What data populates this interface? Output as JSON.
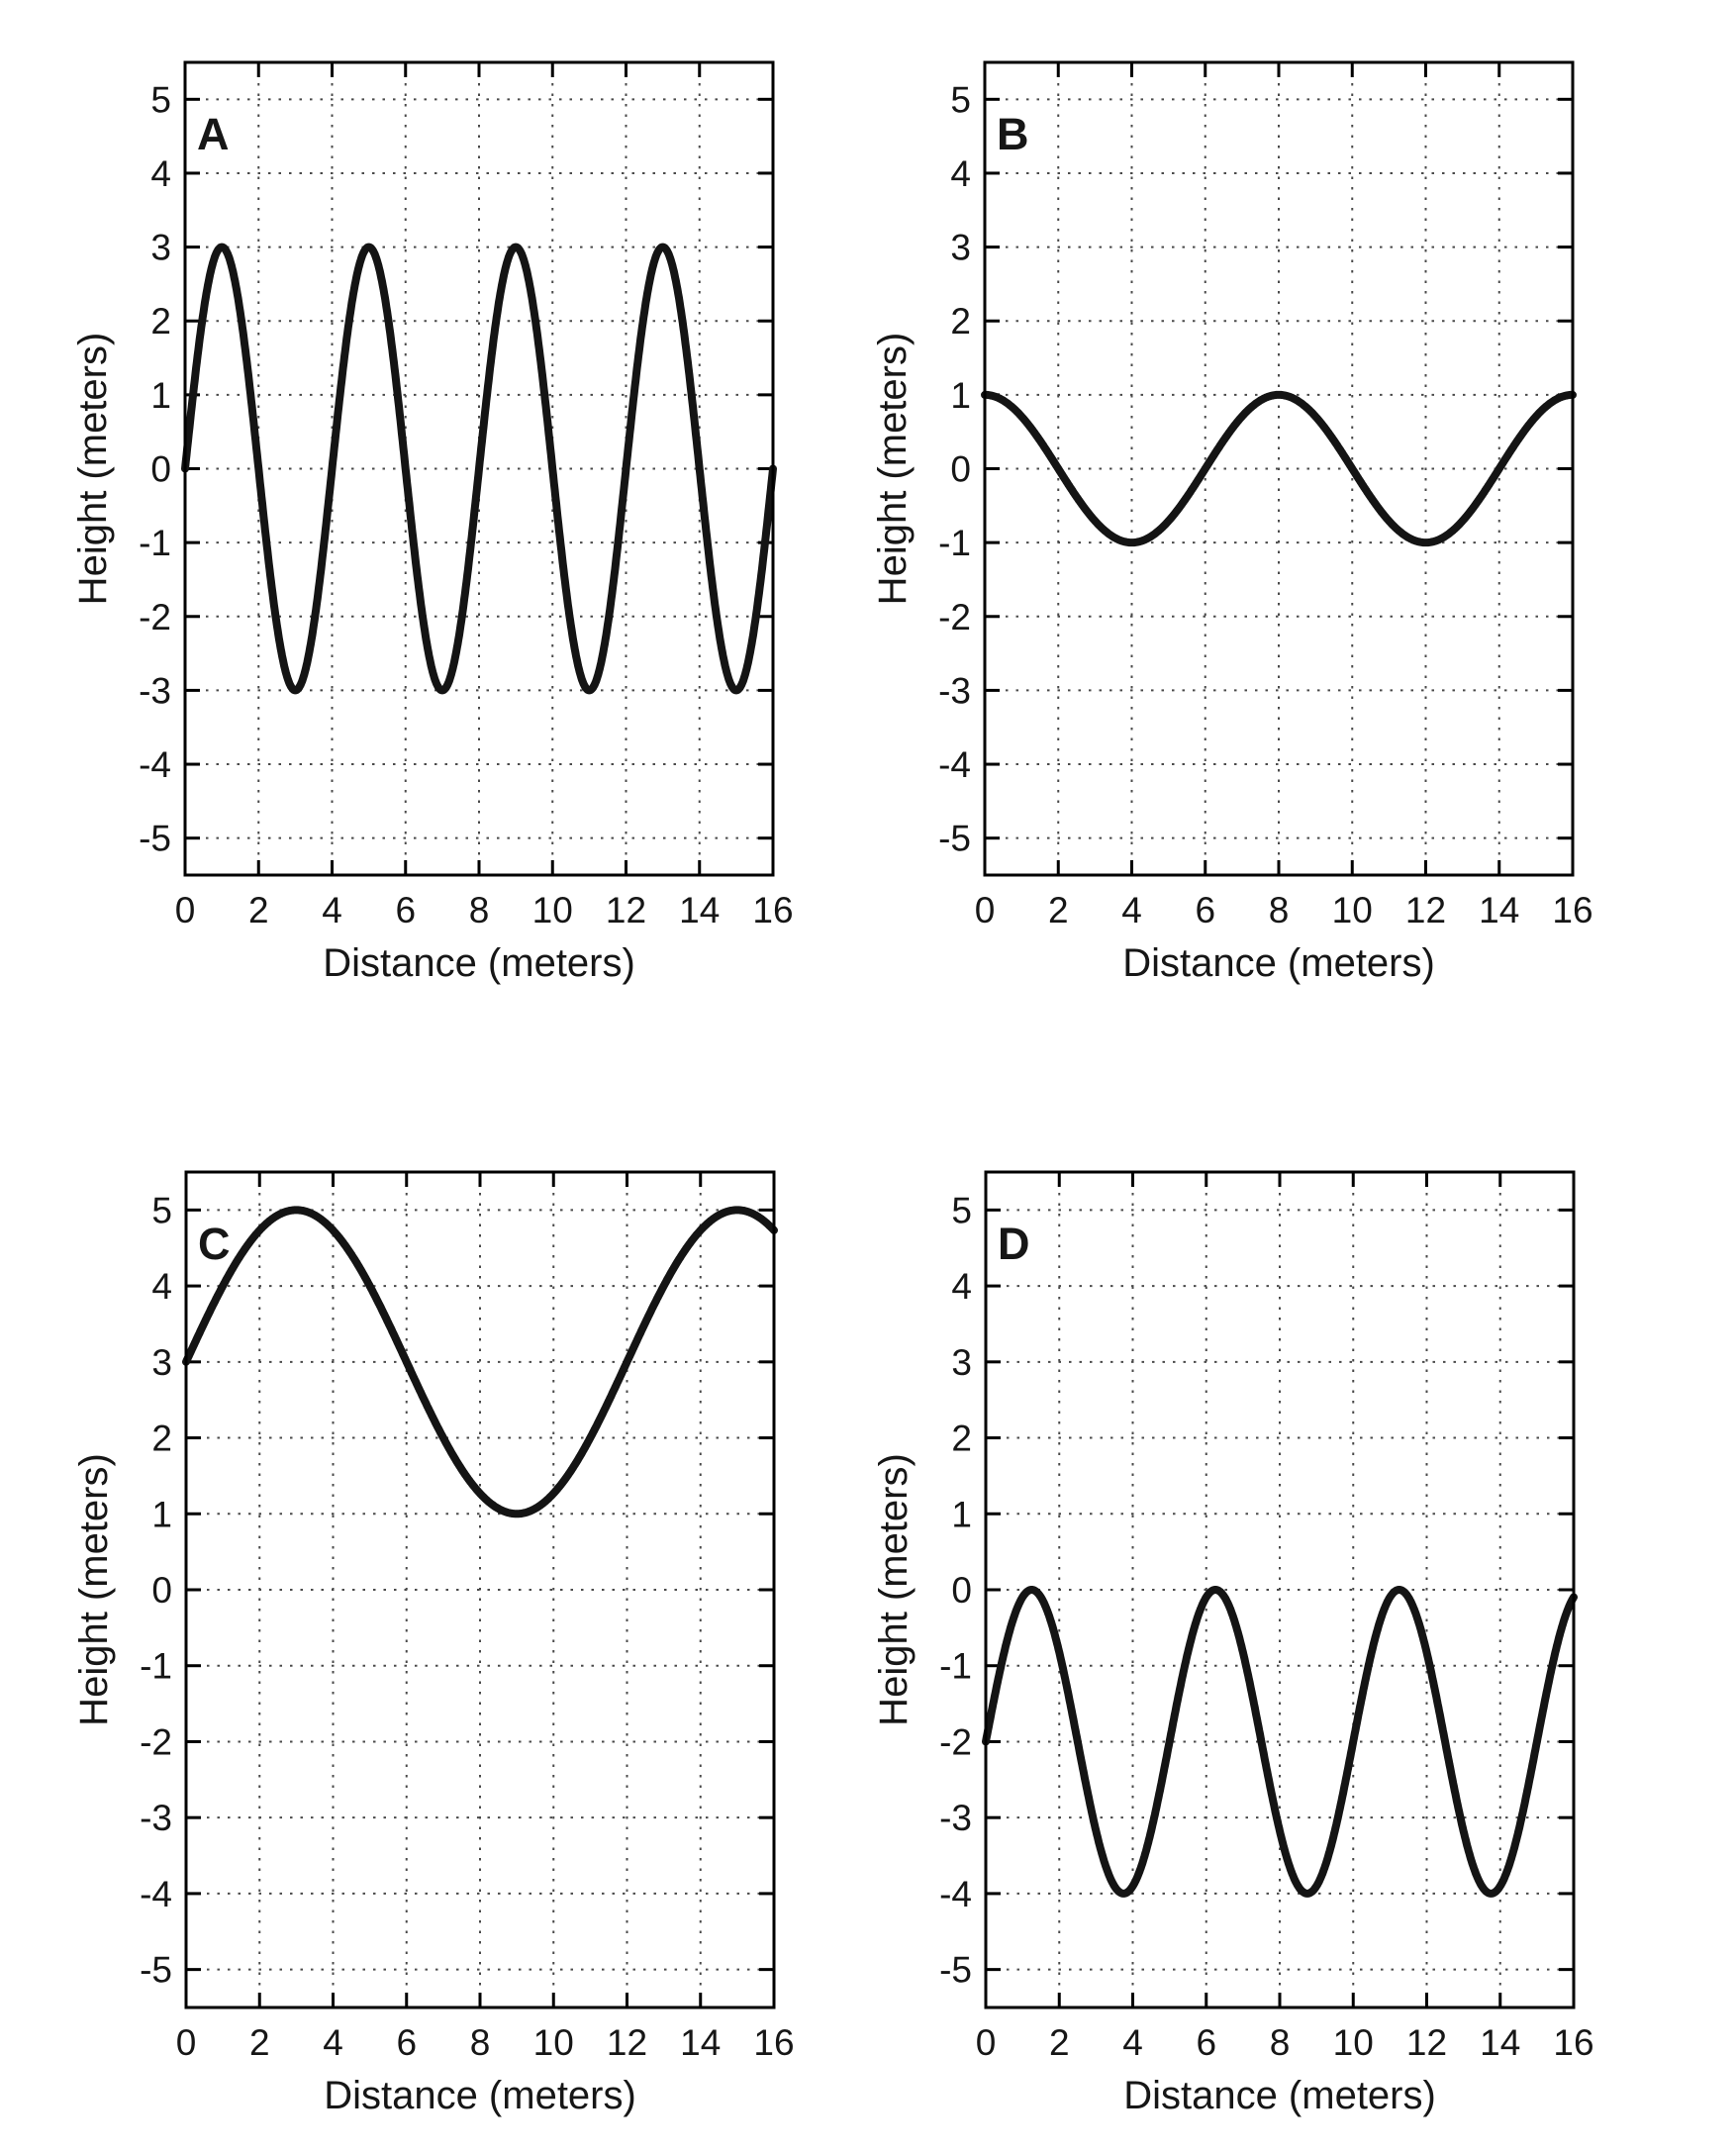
{
  "figure": {
    "background": "#ffffff",
    "text_color": "#161616",
    "curve_color": "#141414",
    "grid_color": "#4a4a4a",
    "panel_letters": [
      "A",
      "B",
      "C",
      "D"
    ]
  },
  "chart_data": [
    {
      "type": "line",
      "panel_label": "A",
      "xlabel": "Distance (meters)",
      "ylabel": "Height (meters)",
      "xlim": [
        0,
        16
      ],
      "ylim": [
        -5.5,
        5.5
      ],
      "xticks": [
        0,
        2,
        4,
        6,
        8,
        10,
        12,
        14,
        16
      ],
      "yticks": [
        -5,
        -4,
        -3,
        -2,
        -1,
        0,
        1,
        2,
        3,
        4,
        5
      ],
      "grid": "dotted",
      "legend": "none",
      "line_color": "#141414",
      "wave": {
        "form": "sine",
        "mean_m": 0,
        "amplitude_m": 3,
        "wavelength_m": 4,
        "phase_deg": 0
      },
      "points_x_m": [
        0,
        1,
        2,
        3,
        4,
        5,
        6,
        7,
        8,
        9,
        10,
        11,
        12,
        13,
        14,
        15,
        16
      ],
      "points_y_m": [
        0,
        3,
        0,
        -3,
        0,
        3,
        0,
        -3,
        0,
        3,
        0,
        -3,
        0,
        3,
        0,
        -3,
        0
      ]
    },
    {
      "type": "line",
      "panel_label": "B",
      "xlabel": "Distance (meters)",
      "ylabel": "Height (meters)",
      "xlim": [
        0,
        16
      ],
      "ylim": [
        -5.5,
        5.5
      ],
      "xticks": [
        0,
        2,
        4,
        6,
        8,
        10,
        12,
        14,
        16
      ],
      "yticks": [
        -5,
        -4,
        -3,
        -2,
        -1,
        0,
        1,
        2,
        3,
        4,
        5
      ],
      "grid": "dotted",
      "legend": "none",
      "line_color": "#141414",
      "wave": {
        "form": "cosine",
        "mean_m": 0,
        "amplitude_m": 1,
        "wavelength_m": 8,
        "phase_deg": 90
      },
      "points_x_m": [
        0,
        1,
        2,
        3,
        4,
        5,
        6,
        7,
        8,
        9,
        10,
        11,
        12,
        13,
        14,
        15,
        16
      ],
      "points_y_m": [
        1,
        0.71,
        0,
        -0.71,
        -1,
        -0.71,
        0,
        0.71,
        1,
        0.71,
        0,
        -0.71,
        -1,
        -0.71,
        0,
        0.71,
        1
      ]
    },
    {
      "type": "line",
      "panel_label": "C",
      "xlabel": "Distance (meters)",
      "ylabel": "Height (meters)",
      "xlim": [
        0,
        16
      ],
      "ylim": [
        -5.5,
        5.5
      ],
      "xticks": [
        0,
        2,
        4,
        6,
        8,
        10,
        12,
        14,
        16
      ],
      "yticks": [
        -5,
        -4,
        -3,
        -2,
        -1,
        0,
        1,
        2,
        3,
        4,
        5
      ],
      "grid": "dotted",
      "legend": "none",
      "line_color": "#141414",
      "wave": {
        "form": "sine",
        "mean_m": 3,
        "amplitude_m": 2,
        "wavelength_m": 12,
        "phase_deg": 0
      },
      "points_x_m": [
        0,
        1,
        2,
        3,
        4,
        5,
        6,
        7,
        8,
        9,
        10,
        11,
        12,
        13,
        14,
        15,
        16
      ],
      "points_y_m": [
        3,
        4,
        4.73,
        5,
        4.73,
        4,
        3,
        2,
        1.27,
        1,
        1.27,
        2,
        3,
        4,
        4.73,
        5,
        4.73
      ]
    },
    {
      "type": "line",
      "panel_label": "D",
      "xlabel": "Distance (meters)",
      "ylabel": "Height (meters)",
      "xlim": [
        0,
        16
      ],
      "ylim": [
        -5.5,
        5.5
      ],
      "xticks": [
        0,
        2,
        4,
        6,
        8,
        10,
        12,
        14,
        16
      ],
      "yticks": [
        -5,
        -4,
        -3,
        -2,
        -1,
        0,
        1,
        2,
        3,
        4,
        5
      ],
      "grid": "dotted",
      "legend": "none",
      "line_color": "#141414",
      "wave": {
        "form": "sine",
        "mean_m": -2,
        "amplitude_m": 2,
        "wavelength_m": 5,
        "phase_deg": 0
      },
      "points_x_m": [
        0,
        1,
        2,
        3,
        4,
        5,
        6,
        7,
        8,
        9,
        10,
        11,
        12,
        13,
        14,
        15,
        16
      ],
      "points_y_m": [
        -2,
        -0.1,
        -0.82,
        -3.18,
        -3.9,
        -2,
        -0.1,
        -0.82,
        -3.18,
        -3.9,
        -2,
        -0.1,
        -0.82,
        -3.18,
        -3.9,
        -2,
        -0.1
      ]
    }
  ]
}
